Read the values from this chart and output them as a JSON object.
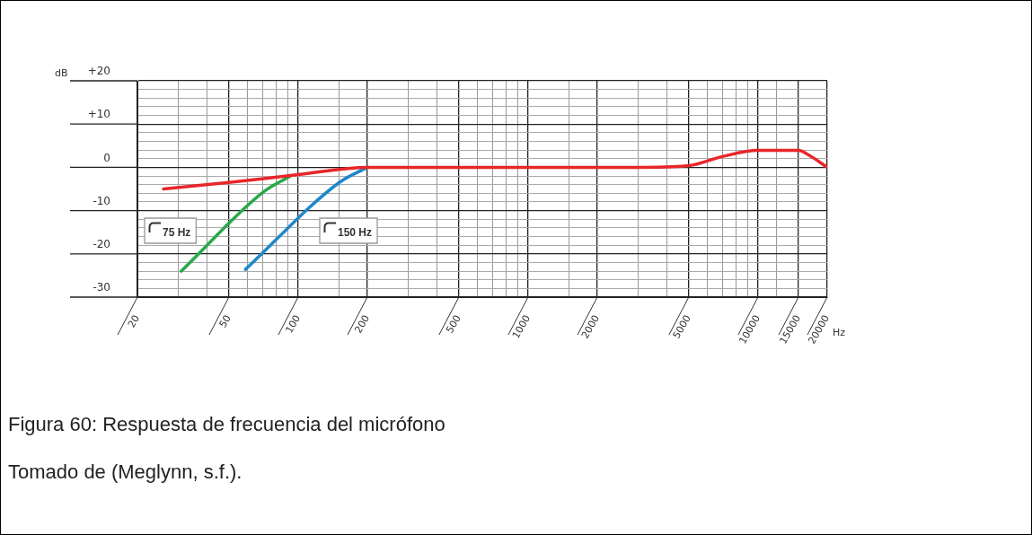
{
  "chart_data": {
    "type": "line",
    "xlabel": "Hz",
    "ylabel": "dB",
    "log": "x",
    "grid": true,
    "legend": false,
    "marker": "none",
    "line_style": "solid",
    "xlim": [
      20,
      20000
    ],
    "ylim": [
      -30,
      20
    ],
    "xticks": [
      20,
      {
        "value": 30,
        "label": null
      },
      {
        "value": 40,
        "label": null
      },
      50,
      {
        "value": 60,
        "label": null
      },
      {
        "value": 70,
        "label": null
      },
      {
        "value": 80,
        "label": null
      },
      {
        "value": 90,
        "label": null
      },
      100,
      {
        "value": 150,
        "label": null
      },
      200,
      {
        "value": 300,
        "label": null
      },
      {
        "value": 400,
        "label": null
      },
      500,
      {
        "value": 600,
        "label": null
      },
      {
        "value": 700,
        "label": null
      },
      {
        "value": 800,
        "label": null
      },
      {
        "value": 900,
        "label": null
      },
      1000,
      {
        "value": 1500,
        "label": null
      },
      2000,
      {
        "value": 3000,
        "label": null
      },
      {
        "value": 4000,
        "label": null
      },
      5000,
      {
        "value": 6000,
        "label": null
      },
      {
        "value": 7000,
        "label": null
      },
      {
        "value": 8000,
        "label": null
      },
      {
        "value": 9000,
        "label": null
      },
      10000,
      {
        "value": 12000,
        "label": null
      },
      15000,
      20000
    ],
    "yticks": [
      -30,
      {
        "value": -28,
        "label": null
      },
      {
        "value": -26,
        "label": null
      },
      {
        "value": -24,
        "label": null
      },
      {
        "value": -22,
        "label": null
      },
      -20,
      {
        "value": -18,
        "label": null
      },
      {
        "value": -16,
        "label": null
      },
      {
        "value": -14,
        "label": null
      },
      {
        "value": -12,
        "label": null
      },
      -10,
      {
        "value": -8,
        "label": null
      },
      {
        "value": -6,
        "label": null
      },
      {
        "value": -4,
        "label": null
      },
      {
        "value": -2,
        "label": null
      },
      0,
      {
        "value": 2,
        "label": null
      },
      {
        "value": 4,
        "label": null
      },
      {
        "value": 6,
        "label": null
      },
      {
        "value": 8,
        "label": null
      },
      {
        "value": 10,
        "label": "+10"
      },
      {
        "value": 12,
        "label": null
      },
      {
        "value": 14,
        "label": null
      },
      {
        "value": 16,
        "label": null
      },
      {
        "value": 18,
        "label": null
      },
      {
        "value": 20,
        "label": "+20"
      }
    ],
    "series": [
      {
        "color": "#e8262a",
        "x": [
          26,
          50,
          100,
          200,
          500,
          1000,
          3000,
          5000,
          7000,
          10000,
          15000,
          17000,
          20000
        ],
        "values": [
          -5,
          -3.5,
          -1.7,
          0,
          0,
          0,
          0,
          0.4,
          2.5,
          3.9,
          3.9,
          2.5,
          0
        ]
      },
      {
        "color": "#2aa84a",
        "x": [
          31,
          71,
          92
        ],
        "values": [
          -24,
          -5.6,
          -2.1
        ]
      },
      {
        "color": "#1e88c8",
        "x": [
          59,
          151,
          200
        ],
        "values": [
          -23.6,
          -3.5,
          0
        ]
      }
    ],
    "annotations": [
      "75 Hz",
      "150 Hz",
      "Figura 60: Respuesta de frecuencia del micrófono",
      "Tomado de (Meglynn, s.f.)."
    ]
  }
}
